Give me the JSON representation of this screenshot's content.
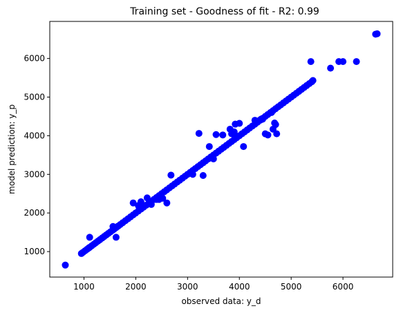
{
  "chart_data": {
    "type": "scatter",
    "title": "Training set - Goodness of fit -  R2: 0.99",
    "xlabel": "observed data: y_d",
    "ylabel": "model prediction: y_p",
    "xlim": [
      340,
      6960
    ],
    "ylim": [
      340,
      6960
    ],
    "xticks": [
      1000,
      2000,
      3000,
      4000,
      5000,
      6000
    ],
    "yticks": [
      1000,
      2000,
      3000,
      4000,
      5000,
      6000
    ],
    "grid": false,
    "marker_color": "#0000ff",
    "series": [
      {
        "values_x": [
          640,
          950,
          980,
          1020,
          1060,
          1090,
          1110,
          1150,
          1190,
          1230,
          1270,
          1310,
          1350,
          1390,
          1430,
          1470,
          1510,
          1550,
          1580,
          1620,
          1660,
          1700,
          1750,
          1800,
          1850,
          1900,
          1950,
          2000,
          2050,
          2100,
          2150,
          2200,
          2250,
          2300,
          2350,
          2400,
          2450,
          2500,
          2550,
          2600,
          2650,
          2700,
          2750,
          2800,
          2850,
          2900,
          2950,
          3000,
          3050,
          3100,
          3150,
          3200,
          3250,
          3300,
          3350,
          3400,
          3450,
          3500,
          3550,
          3600,
          3650,
          3700,
          3750,
          3800,
          3850,
          3900,
          3950,
          4000,
          4050,
          4100,
          4150,
          4200,
          4250,
          4300,
          4350,
          4400,
          4450,
          4500,
          4550,
          4600,
          4650,
          4700,
          4750,
          4800,
          4850,
          4900,
          4950,
          5000,
          5050,
          5100,
          5150,
          5200,
          5250,
          5300,
          5350,
          5400,
          5420,
          5760,
          5920,
          6000,
          6260,
          6630,
          6660,
          1110,
          1560,
          1620,
          1950,
          2100,
          2220,
          2400,
          2450,
          2600,
          2680,
          3220,
          3300,
          3420,
          3550,
          3680,
          3820,
          3850,
          3920,
          4000,
          4080,
          4300,
          4400,
          4420,
          4450,
          4650,
          4680,
          4700,
          4720,
          5380,
          2050,
          2300,
          3100,
          3500,
          4500,
          4550,
          3900,
          2520,
          4620
        ],
        "values_y": [
          650,
          950,
          980,
          1020,
          1060,
          1090,
          1110,
          1150,
          1190,
          1230,
          1270,
          1310,
          1350,
          1390,
          1430,
          1470,
          1510,
          1550,
          1580,
          1620,
          1660,
          1700,
          1750,
          1800,
          1850,
          1900,
          1950,
          2000,
          2050,
          2100,
          2150,
          2200,
          2250,
          2300,
          2350,
          2400,
          2450,
          2500,
          2550,
          2600,
          2650,
          2700,
          2750,
          2800,
          2850,
          2900,
          2950,
          3000,
          3050,
          3100,
          3150,
          3200,
          3250,
          3300,
          3350,
          3400,
          3450,
          3500,
          3550,
          3600,
          3650,
          3700,
          3750,
          3800,
          3850,
          3900,
          3950,
          4000,
          4050,
          4100,
          4150,
          4200,
          4250,
          4300,
          4350,
          4400,
          4450,
          4500,
          4550,
          4600,
          4650,
          4700,
          4750,
          4800,
          4850,
          4900,
          4950,
          5000,
          5050,
          5100,
          5150,
          5200,
          5250,
          5300,
          5350,
          5400,
          5430,
          5750,
          5920,
          5920,
          5920,
          6630,
          6640,
          1370,
          1650,
          1370,
          2260,
          2290,
          2390,
          2350,
          2350,
          2260,
          2980,
          4060,
          2970,
          3720,
          4030,
          4020,
          4170,
          4050,
          4300,
          4320,
          3720,
          4400,
          4410,
          4430,
          4430,
          4170,
          4330,
          4290,
          4050,
          5920,
          2190,
          2220,
          3000,
          3400,
          4050,
          4020,
          4100,
          2380,
          4600
        ]
      }
    ]
  }
}
